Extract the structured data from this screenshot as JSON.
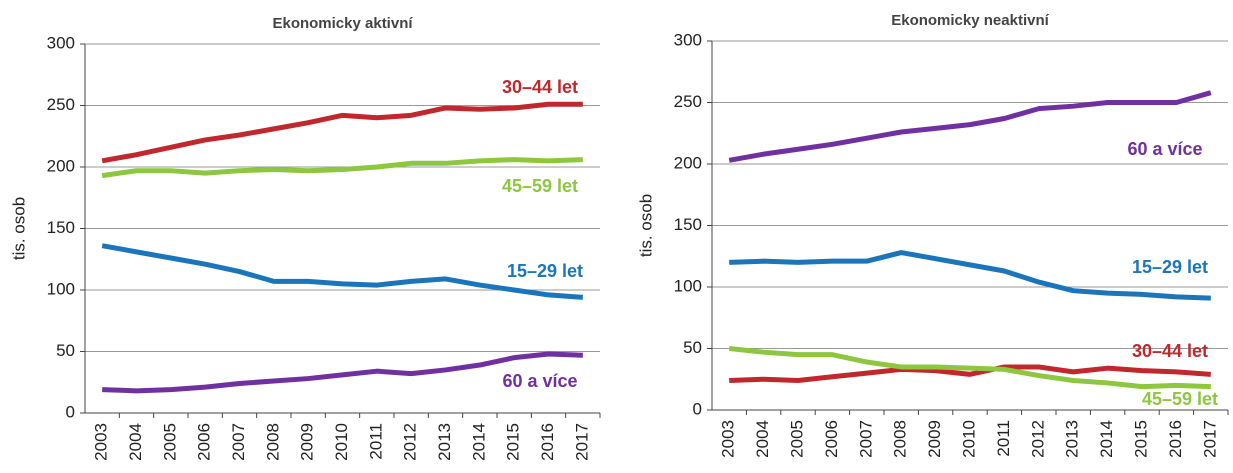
{
  "chart_data": [
    {
      "type": "line",
      "title": "Ekonomicky aktivní",
      "y_label": "tis. osob",
      "categories": [
        "2003",
        "2004",
        "2005",
        "2006",
        "2007",
        "2008",
        "2009",
        "2010",
        "2011",
        "2012",
        "2013",
        "2014",
        "2015",
        "2016",
        "2017"
      ],
      "ylim": [
        0,
        300
      ],
      "yticks": [
        0,
        50,
        100,
        150,
        200,
        250,
        300
      ],
      "grid": true,
      "series": [
        {
          "name": "15–29 let",
          "color": "#1b75bb",
          "values": [
            136,
            131,
            126,
            121,
            115,
            107,
            107,
            105,
            104,
            107,
            109,
            104,
            100,
            96,
            94
          ]
        },
        {
          "name": "30–44 let",
          "color": "#c0282d",
          "values": [
            205,
            210,
            216,
            222,
            226,
            231,
            236,
            242,
            240,
            242,
            248,
            247,
            248,
            251,
            251
          ]
        },
        {
          "name": "45–59 let",
          "color": "#8dc63f",
          "values": [
            193,
            197,
            197,
            195,
            197,
            198,
            197,
            198,
            200,
            203,
            203,
            205,
            206,
            205,
            206
          ]
        },
        {
          "name": "60 a více",
          "color": "#7030a0",
          "values": [
            19,
            18,
            19,
            21,
            24,
            26,
            28,
            31,
            34,
            32,
            35,
            39,
            45,
            48,
            47
          ]
        }
      ]
    },
    {
      "type": "line",
      "title": "Ekonomicky neaktivní",
      "y_label": "tis. osob",
      "categories": [
        "2003",
        "2004",
        "2005",
        "2006",
        "2007",
        "2008",
        "2009",
        "2010",
        "2011",
        "2012",
        "2013",
        "2014",
        "2015",
        "2016",
        "2017"
      ],
      "ylim": [
        0,
        300
      ],
      "yticks": [
        0,
        50,
        100,
        150,
        200,
        250,
        300
      ],
      "grid": true,
      "series": [
        {
          "name": "15–29 let",
          "color": "#1b75bb",
          "values": [
            120,
            121,
            120,
            121,
            121,
            128,
            123,
            118,
            113,
            104,
            97,
            95,
            94,
            92,
            91
          ]
        },
        {
          "name": "30–44 let",
          "color": "#c0282d",
          "values": [
            24,
            25,
            24,
            27,
            30,
            33,
            32,
            29,
            35,
            35,
            31,
            34,
            32,
            31,
            29
          ]
        },
        {
          "name": "45–59 let",
          "color": "#8dc63f",
          "values": [
            50,
            47,
            45,
            45,
            39,
            35,
            35,
            34,
            33,
            28,
            24,
            22,
            19,
            20,
            19
          ]
        },
        {
          "name": "60 a více",
          "color": "#7030a0",
          "values": [
            203,
            208,
            212,
            216,
            221,
            226,
            229,
            232,
            237,
            245,
            247,
            250,
            250,
            250,
            258
          ]
        }
      ]
    }
  ]
}
